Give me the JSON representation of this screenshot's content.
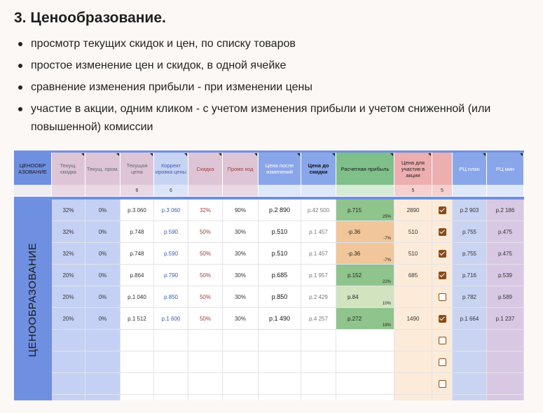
{
  "title": "3. Ценообразование.",
  "bullets": [
    "просмотр текущих скидок и цен, по списку товаров",
    "простое изменение цен и скидок, в одной ячейке",
    "сравнение изменения прибыли - при изменении цены",
    "участие в акции, одним кликом - с учетом изменения прибыли и учетом сниженной (или повышенной) комиссии"
  ],
  "sheet": {
    "row_label": "ЦЕНООБРАЗОВАНИЕ",
    "columns": [
      {
        "label": "ЦЕНООБР АЗОВАНИЕ",
        "sub": ""
      },
      {
        "label": "Текущ. скидка",
        "sub": ""
      },
      {
        "label": "Текущ. пром.",
        "sub": ""
      },
      {
        "label": "Текущая цена",
        "sub": "6"
      },
      {
        "label": "Коррект ировка цены",
        "sub": "6"
      },
      {
        "label": "Скидка",
        "sub": ""
      },
      {
        "label": "Промо код",
        "sub": ""
      },
      {
        "label": "Цена после изменений",
        "sub": ""
      },
      {
        "label": "Цена до скидки",
        "sub": ""
      },
      {
        "label": "Расчетная прибыль",
        "sub": ""
      },
      {
        "label": "Цена для участия в акции",
        "sub": "5"
      },
      {
        "label": "",
        "sub": "5"
      },
      {
        "label": "РЦ план",
        "sub": ""
      },
      {
        "label": "РЦ мин",
        "sub": ""
      }
    ],
    "rows": [
      {
        "disc": "32%",
        "promo": "0%",
        "price": "р.3 060",
        "corr": "р.3 060",
        "skidka": "32%",
        "code": "90%",
        "after": "р.2 890",
        "before": "р.42 500",
        "profit": "р.715",
        "ppct": "25%",
        "akcia": "2890",
        "check": true,
        "rc_plan": "р.2 903",
        "rc_min": "р.2 186"
      },
      {
        "disc": "32%",
        "promo": "0%",
        "price": "р.748",
        "corr": "р.590",
        "skidka": "50%",
        "code": "30%",
        "after": "р.510",
        "before": "р.1 457",
        "profit": "-р.36",
        "ppct": "-7%",
        "akcia": "510",
        "check": true,
        "rc_plan": "р.755",
        "rc_min": "р.475"
      },
      {
        "disc": "32%",
        "promo": "0%",
        "price": "р.748",
        "corr": "р.590",
        "skidka": "50%",
        "code": "30%",
        "after": "р.510",
        "before": "р.1 457",
        "profit": "-р.36",
        "ppct": "-7%",
        "akcia": "510",
        "check": true,
        "rc_plan": "р.755",
        "rc_min": "р.475"
      },
      {
        "disc": "20%",
        "promo": "0%",
        "price": "р.864",
        "corr": "р.790",
        "skidka": "50%",
        "code": "30%",
        "after": "р.685",
        "before": "р.1 957",
        "profit": "р.152",
        "ppct": "22%",
        "akcia": "685",
        "check": true,
        "rc_plan": "р.716",
        "rc_min": "р.539"
      },
      {
        "disc": "20%",
        "promo": "0%",
        "price": "р.1 040",
        "corr": "р.850",
        "skidka": "50%",
        "code": "30%",
        "after": "р.850",
        "before": "р.2 429",
        "profit": "р.84",
        "ppct": "10%",
        "akcia": "",
        "check": false,
        "rc_plan": "р.782",
        "rc_min": "р.589"
      },
      {
        "disc": "20%",
        "promo": "0%",
        "price": "р.1 512",
        "corr": "р.1 600",
        "skidka": "50%",
        "code": "30%",
        "after": "р.1 490",
        "before": "р.4 257",
        "profit": "р.272",
        "ppct": "18%",
        "akcia": "1490",
        "check": true,
        "rc_plan": "р.1 664",
        "rc_min": "р.1 237"
      },
      {
        "disc": "",
        "promo": "",
        "price": "",
        "corr": "",
        "skidka": "",
        "code": "",
        "after": "",
        "before": "",
        "profit": "",
        "ppct": "",
        "akcia": "",
        "check": false,
        "rc_plan": "",
        "rc_min": ""
      },
      {
        "disc": "",
        "promo": "",
        "price": "",
        "corr": "",
        "skidka": "",
        "code": "",
        "after": "",
        "before": "",
        "profit": "",
        "ppct": "",
        "akcia": "",
        "check": false,
        "rc_plan": "",
        "rc_min": ""
      },
      {
        "disc": "",
        "promo": "",
        "price": "",
        "corr": "",
        "skidka": "",
        "code": "",
        "after": "",
        "before": "",
        "profit": "",
        "ppct": "",
        "akcia": "",
        "check": false,
        "rc_plan": "",
        "rc_min": ""
      },
      {
        "disc": "",
        "promo": "",
        "price": "",
        "corr": "",
        "skidka": "",
        "code": "",
        "after": "",
        "before": "",
        "profit": "",
        "ppct": "",
        "akcia": "",
        "check": false,
        "rc_plan": "",
        "rc_min": ""
      }
    ],
    "colors": {
      "accent": "#6f8fe0",
      "checkbox": "#8a4b17",
      "profit_high": "#8fc48c",
      "profit_low": "#f0c69a",
      "profit_mid": "#d2e3c0"
    }
  }
}
